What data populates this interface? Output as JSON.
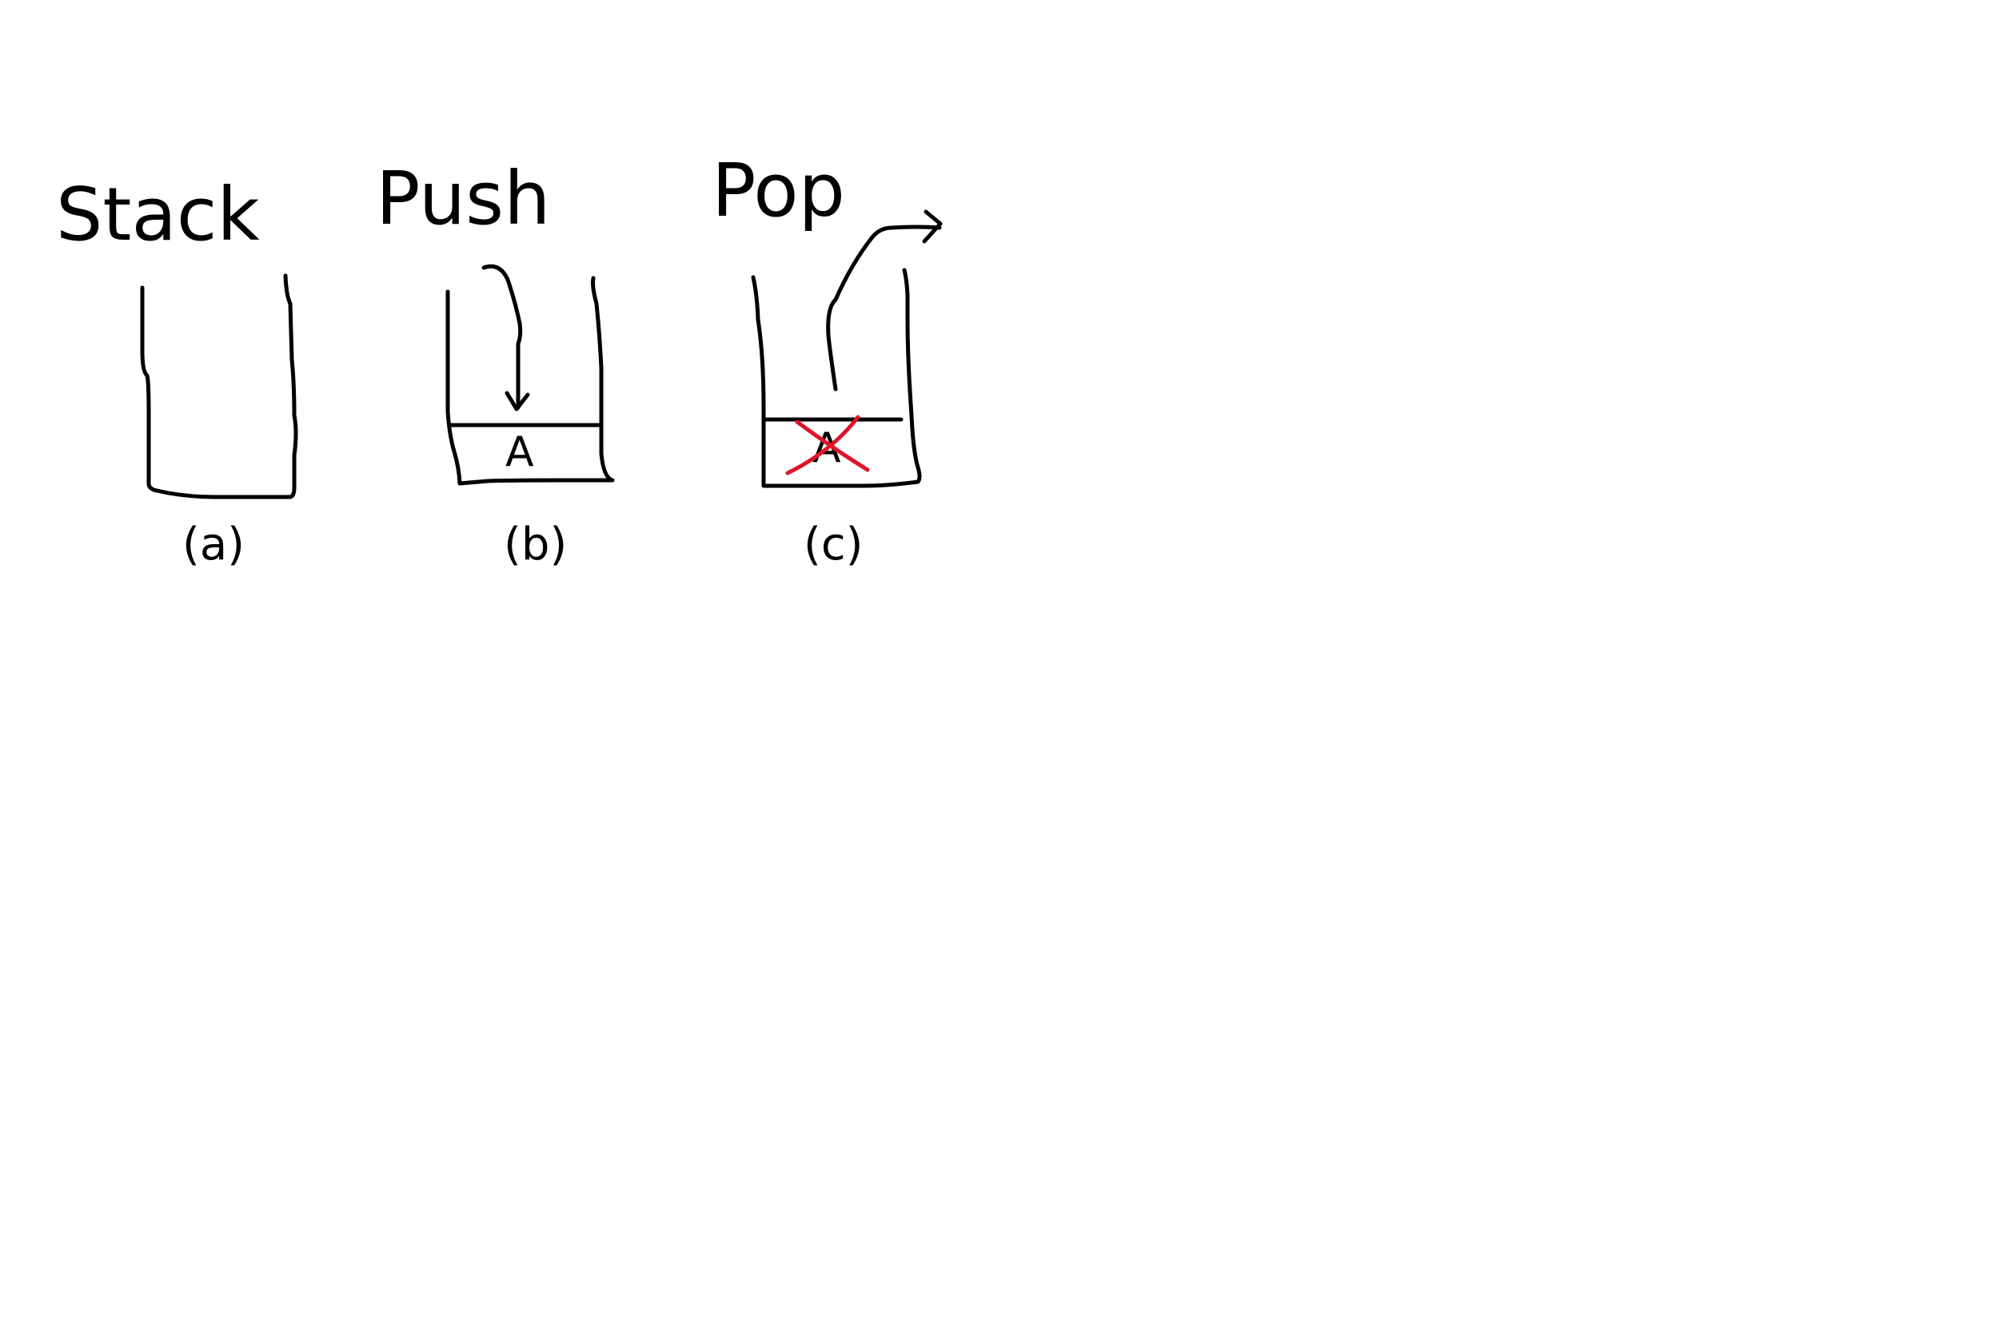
{
  "colors": {
    "ink": "#000000",
    "cross": "#e0142a",
    "background": "#ffffff"
  },
  "panels": [
    {
      "title": "Stack",
      "caption": "(a)",
      "items": []
    },
    {
      "title": "Push",
      "caption": "(b)",
      "items": [
        "A"
      ],
      "arrow": "arrow-down-icon"
    },
    {
      "title": "Pop",
      "caption": "(c)",
      "items": [
        "A"
      ],
      "arrow": "arrow-out-icon",
      "removed_mark": "cross-out-icon"
    }
  ]
}
